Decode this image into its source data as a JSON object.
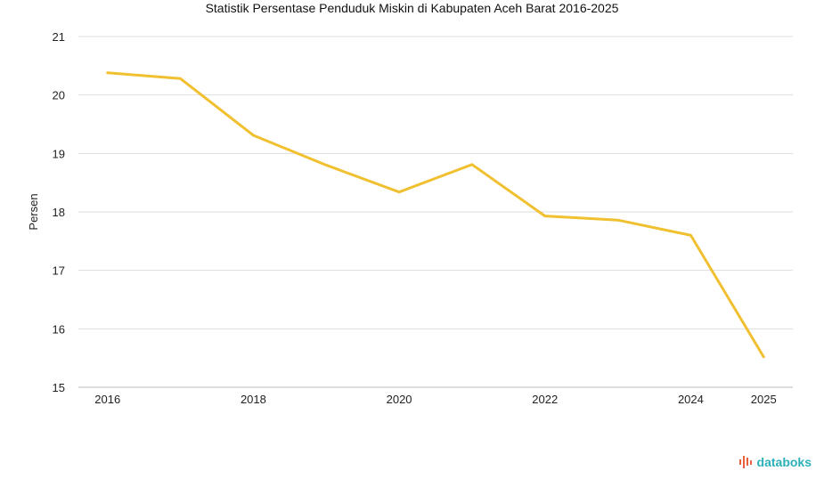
{
  "colors": {
    "line": "#f0c030",
    "grid": "#dddddd",
    "brand": "#2bb0b8",
    "brand_icon": "#e8603c"
  },
  "brand": {
    "name": "databoks"
  },
  "chart_data": {
    "type": "line",
    "title": "Statistik Persentase Penduduk Miskin di Kabupaten Aceh Barat 2016-2025",
    "xlabel": "",
    "ylabel": "Persen",
    "ylim": [
      15,
      21
    ],
    "yticks": [
      "15",
      "16",
      "17",
      "18",
      "19",
      "20",
      "21"
    ],
    "xticks": [
      "2016",
      "2018",
      "2020",
      "2022",
      "2024",
      "2025"
    ],
    "x": [
      2016,
      2017,
      2018,
      2019,
      2020,
      2021,
      2022,
      2023,
      2024,
      2025
    ],
    "series": [
      {
        "name": "Persen",
        "values": [
          20.38,
          20.28,
          19.31,
          18.8,
          18.34,
          18.81,
          17.93,
          17.86,
          17.6,
          15.52
        ]
      }
    ],
    "grid": true,
    "legend": "none"
  }
}
